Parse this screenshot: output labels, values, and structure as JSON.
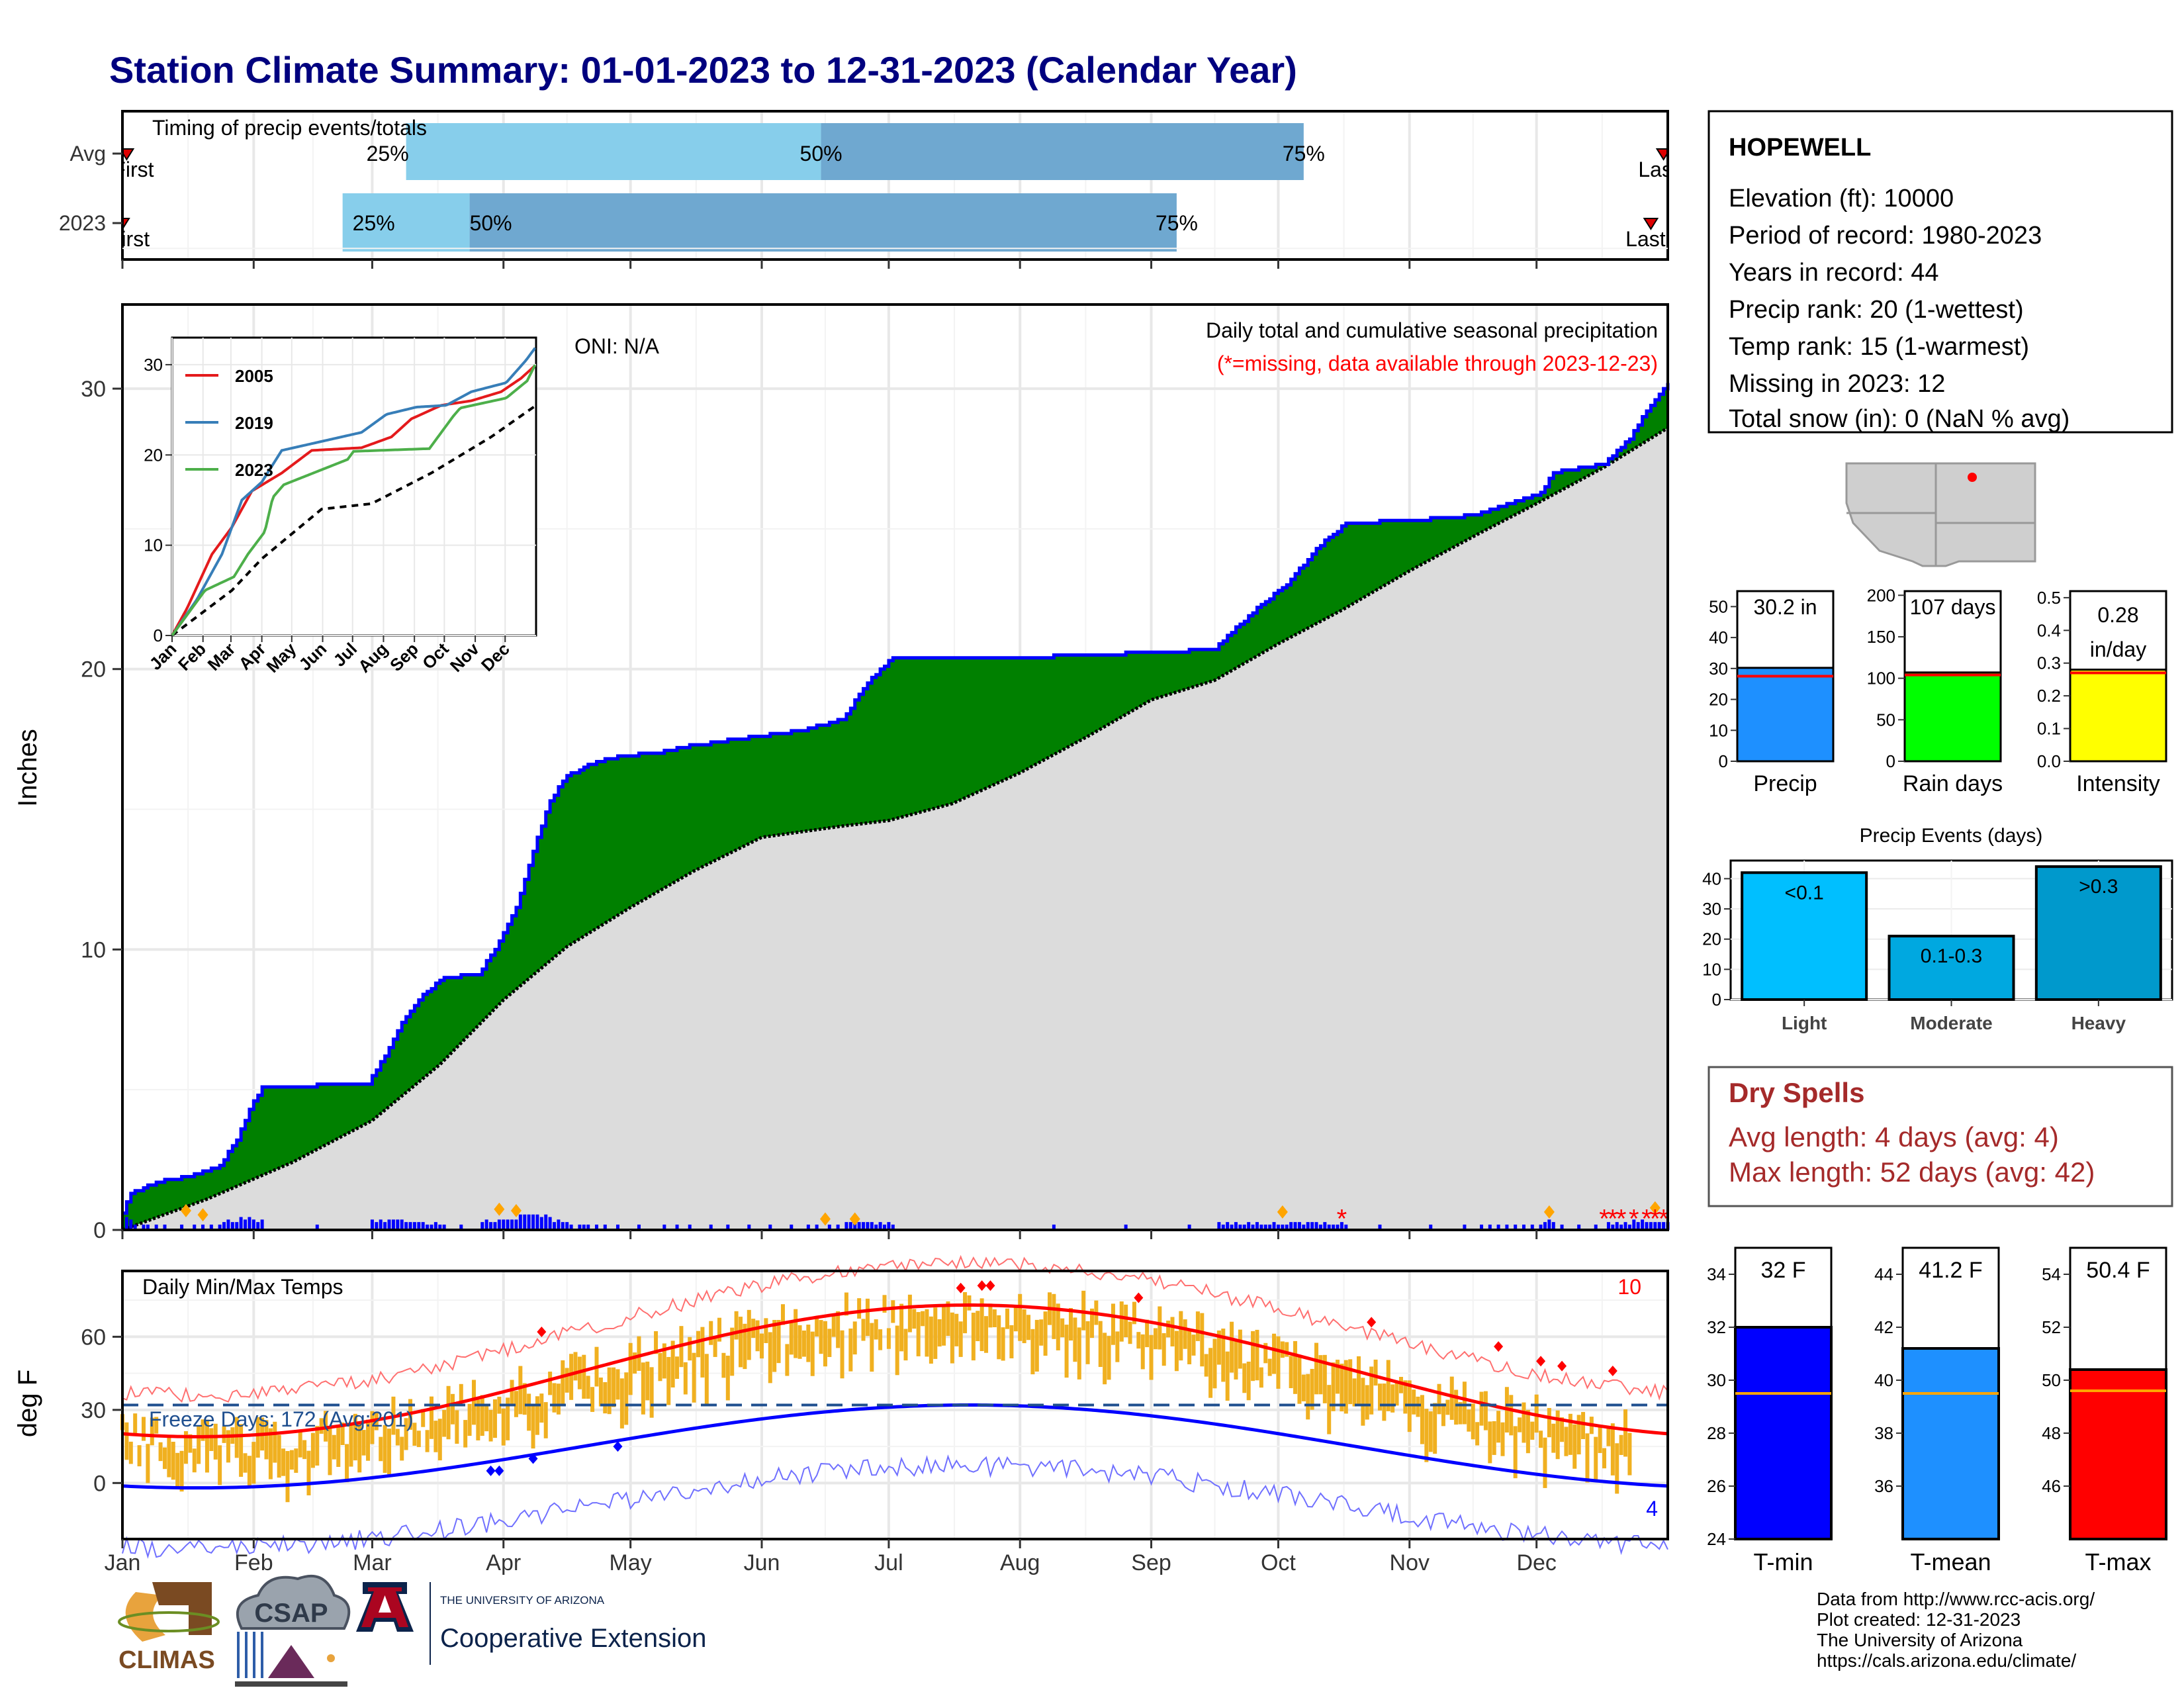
{
  "title": "Station Climate Summary: 01-01-2023 to 12-31-2023 (Calendar Year)",
  "months": [
    "Jan",
    "Feb",
    "Mar",
    "Apr",
    "May",
    "Jun",
    "Jul",
    "Aug",
    "Sep",
    "Oct",
    "Nov",
    "Dec"
  ],
  "timing": {
    "title": "Timing of precip events/totals",
    "rows": [
      {
        "label": "Avg",
        "first": "First",
        "last": "Last",
        "p25": "25%",
        "p50": "50%",
        "p75": "75%",
        "p25_date": "2023-03-09",
        "p50_date": "2023-06-15",
        "p75_date": "2023-10-07",
        "first_date": "2023-01-02",
        "last_date": "2023-12-31"
      },
      {
        "label": "2023",
        "first": "First",
        "last": "Last",
        "p25": "25%",
        "p50": "50%",
        "p75": "75%",
        "p25_date": "2023-02-22",
        "p50_date": "2023-03-24",
        "p75_date": "2023-09-07",
        "first_date": "2023-01-01",
        "last_date": "2023-12-28"
      }
    ],
    "color_light": "#87ceeb",
    "color_dark": "#6fa8d0"
  },
  "precip_panel": {
    "ylabel": "Inches",
    "oni": "ONI: N/A",
    "subtitle": "Daily total and cumulative seasonal precipitation",
    "missing_note": "(*=missing, data available through 2023-12-23)",
    "yticks": [
      0,
      10,
      20,
      30
    ],
    "ylim": [
      0,
      33
    ]
  },
  "inset": {
    "yticks": [
      0,
      10,
      20,
      30
    ],
    "legend": [
      {
        "name": "2005",
        "color": "#e41a1c"
      },
      {
        "name": "2019",
        "color": "#377eb8"
      },
      {
        "name": "2023",
        "color": "#4daf4a"
      }
    ]
  },
  "temp_panel": {
    "ylabel": "deg F",
    "title": "Daily Min/Max Temps",
    "freeze": "Freeze Days: 172 (Avg:201)",
    "count_hot": "10",
    "count_cold": "4",
    "yticks": [
      0,
      30,
      60
    ],
    "ylim": [
      -23,
      87
    ]
  },
  "station": {
    "name": "HOPEWELL",
    "lines": [
      "Elevation (ft): 10000",
      "Period of record: 1980-2023",
      "Years in record: 44",
      "Precip rank: 20 (1-wettest)",
      "Temp rank: 15 (1-warmest)",
      "Missing in 2023: 12",
      "Total snow (in): 0 (NaN % avg)"
    ]
  },
  "summary_bars": [
    {
      "label": "Precip",
      "value_text": "30.2 in",
      "value": 30.2,
      "avg": 27.5,
      "yticks": [
        0,
        10,
        20,
        30,
        40,
        50
      ],
      "ymax": 55,
      "color": "#1e90ff"
    },
    {
      "label": "Rain days",
      "value_text": "107 days",
      "value": 107,
      "avg": 104,
      "yticks": [
        0,
        50,
        100,
        150,
        200
      ],
      "ymax": 205,
      "color": "#00ff00"
    },
    {
      "label": "Intensity",
      "value_text": "0.28",
      "value_text2": "in/day",
      "value": 0.28,
      "avg": 0.27,
      "yticks": [
        "0.0",
        "0.1",
        "0.2",
        "0.3",
        "0.4",
        "0.5"
      ],
      "ymax": 0.52,
      "color": "#ffff00"
    }
  ],
  "events": {
    "title": "Precip Events (days)",
    "yticks": [
      0,
      10,
      20,
      30,
      40
    ],
    "ymax": 46,
    "bars": [
      {
        "label": "Light",
        "inner": "<0.1",
        "value": 42,
        "color": "#00bfff"
      },
      {
        "label": "Moderate",
        "inner": "0.1-0.3",
        "value": 21,
        "color": "#00a8e0"
      },
      {
        "label": "Heavy",
        "inner": ">0.3",
        "value": 44,
        "color": "#0099cc"
      }
    ]
  },
  "dry_spells": {
    "title": "Dry Spells",
    "avg_line": "Avg length: 4 days (avg: 4)",
    "max_line": "Max length: 52 days (avg: 42)"
  },
  "temp_bars": [
    {
      "label": "T-min",
      "value_text": "32 F",
      "value": 32,
      "avg": 29.5,
      "yticks": [
        24,
        26,
        28,
        30,
        32,
        34
      ],
      "ymin": 24,
      "ymax": 35,
      "color": "#0000ff"
    },
    {
      "label": "T-mean",
      "value_text": "41.2 F",
      "value": 41.2,
      "avg": 39.5,
      "yticks": [
        36,
        38,
        40,
        42,
        44
      ],
      "ymin": 34,
      "ymax": 45,
      "color": "#1e90ff"
    },
    {
      "label": "T-max",
      "value_text": "50.4 F",
      "value": 50.4,
      "avg": 49.6,
      "yticks": [
        46,
        48,
        50,
        52,
        54
      ],
      "ymin": 44,
      "ymax": 55,
      "color": "#ff0000"
    }
  ],
  "credits": [
    "Data from http://www.rcc-acis.org/",
    "Plot created: 12-31-2023",
    "The University of Arizona",
    "https://cals.arizona.edu/climate/"
  ],
  "logos": {
    "climas": "CLIMAS",
    "csap": "CSAP",
    "ua_small": "THE UNIVERSITY OF ARIZONA",
    "ua_big": "Cooperative Extension"
  },
  "colors": {
    "title": "#00007f",
    "green": "#008000",
    "blue_step": "#0000ff",
    "gray_fill": "#dcdcdc",
    "tmax_line": "#ff0000",
    "tmin_line": "#0000ff",
    "daily_range": "#f0b020",
    "dry": "#a52a2a"
  }
}
